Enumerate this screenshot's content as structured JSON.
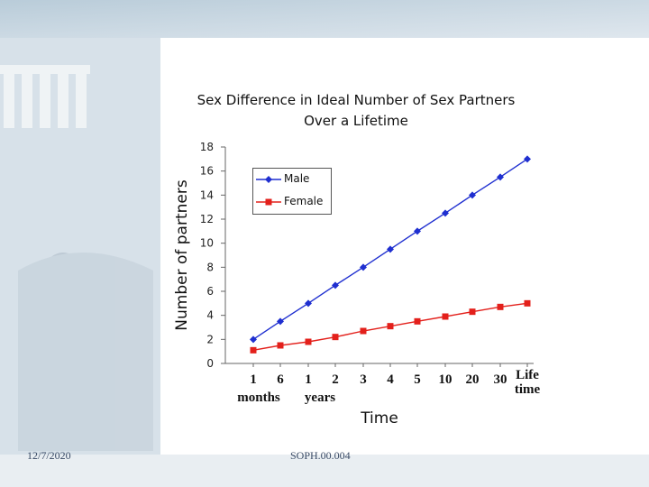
{
  "footer": {
    "date": "12/7/2020",
    "course": "SOPH.00.004"
  },
  "chart_data": {
    "type": "line",
    "title": "Sex Difference in Ideal Number of Sex Partners",
    "subtitle": "Over a Lifetime",
    "xlabel": "Time",
    "ylabel": "Number of partners",
    "ylim": [
      0,
      18
    ],
    "yticks": [
      "0",
      "2",
      "4",
      "6",
      "8",
      "10",
      "12",
      "14",
      "16",
      "18"
    ],
    "categories": [
      "1",
      "6",
      "1",
      "2",
      "3",
      "4",
      "5",
      "10",
      "20",
      "30",
      "Life time"
    ],
    "category_groups": [
      {
        "label": "months"
      },
      {
        "label": "years"
      }
    ],
    "series": [
      {
        "name": "Male",
        "color": "#1f2fd0",
        "marker": "diamond",
        "values": [
          2.0,
          3.5,
          5.0,
          6.5,
          8.0,
          9.5,
          11.0,
          12.5,
          14.0,
          15.5,
          17.0
        ]
      },
      {
        "name": "Female",
        "color": "#e3201b",
        "marker": "square",
        "values": [
          1.1,
          1.5,
          1.8,
          2.2,
          2.7,
          3.1,
          3.5,
          3.9,
          4.3,
          4.7,
          5.0
        ]
      }
    ],
    "grid": false,
    "legend_position": "top-left"
  }
}
